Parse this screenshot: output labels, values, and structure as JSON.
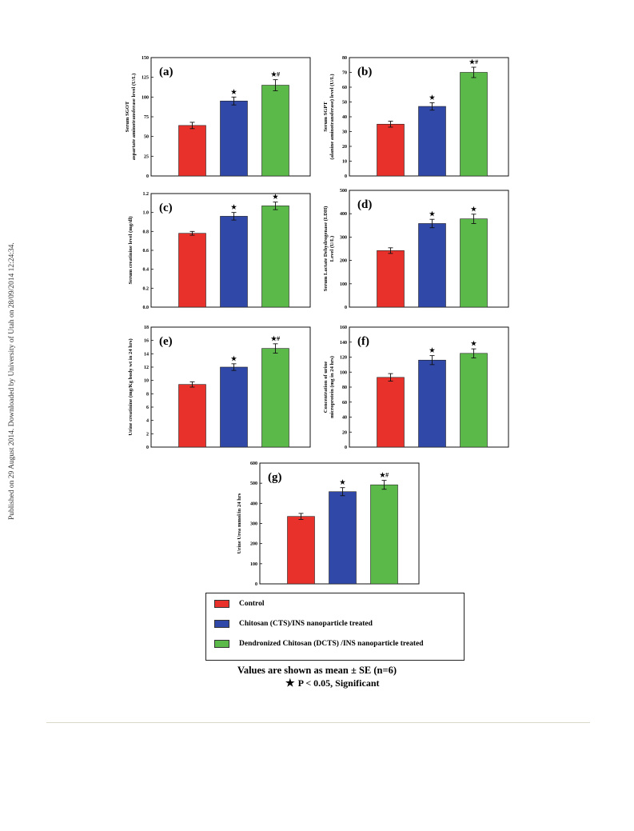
{
  "side_note": "Published on 29 August 2014. Downloaded by University of Utah on 28/09/2014 12:24:34.",
  "colors": {
    "control": "#e8312a",
    "cts": "#3048a8",
    "dcts": "#5ab948"
  },
  "chart_data": [
    {
      "id": "a",
      "type": "bar",
      "panel_label": "(a)",
      "ylabel": [
        "Serum SGOT",
        "aspartate aminotransferase level (U/L)"
      ],
      "yticks": [
        "0",
        "25",
        "50",
        "75",
        "100",
        "125",
        "150"
      ],
      "ylim": [
        0,
        150
      ],
      "values": [
        64,
        95,
        115
      ],
      "errors": [
        4,
        5,
        7
      ],
      "markers": [
        "",
        "★",
        "★#"
      ]
    },
    {
      "id": "b",
      "type": "bar",
      "panel_label": "(b)",
      "ylabel": [
        "Serum SGPT",
        "(alanine aminotransferase) level (U/L)"
      ],
      "yticks": [
        "0",
        "10",
        "20",
        "30",
        "40",
        "50",
        "60",
        "70",
        "80"
      ],
      "ylim": [
        0,
        80
      ],
      "values": [
        35,
        47,
        70
      ],
      "errors": [
        2,
        2.5,
        3.5
      ],
      "markers": [
        "",
        "★",
        "★#"
      ]
    },
    {
      "id": "c",
      "type": "bar",
      "panel_label": "(c)",
      "ylabel": [
        "Serum creatinine level (mg/dl)"
      ],
      "yticks": [
        "0.0",
        "0.2",
        "0.4",
        "0.6",
        "0.8",
        "1.0",
        "1.2"
      ],
      "ylim": [
        0,
        1.2
      ],
      "values": [
        0.78,
        0.96,
        1.07
      ],
      "errors": [
        0.02,
        0.04,
        0.04
      ],
      "markers": [
        "",
        "★",
        "★"
      ]
    },
    {
      "id": "d",
      "type": "bar",
      "panel_label": "(d)",
      "ylabel": [
        "Serum Lactate Dehydrogenase (LDH)",
        "Level (U/L)"
      ],
      "yticks": [
        "0",
        "100",
        "200",
        "300",
        "400",
        "500"
      ],
      "ylim": [
        0,
        500
      ],
      "values": [
        242,
        358,
        378
      ],
      "errors": [
        12,
        18,
        20
      ],
      "markers": [
        "",
        "★",
        "★"
      ]
    },
    {
      "id": "e",
      "type": "bar",
      "panel_label": "(e)",
      "ylabel": [
        "Urine creatinine (mg/Kg body wt in 24 hrs)"
      ],
      "yticks": [
        "0",
        "2",
        "4",
        "6",
        "8",
        "10",
        "12",
        "14",
        "16",
        "18"
      ],
      "ylim": [
        0,
        18
      ],
      "values": [
        9.4,
        12.0,
        14.8
      ],
      "errors": [
        0.4,
        0.5,
        0.7
      ],
      "markers": [
        "",
        "★",
        "★#"
      ]
    },
    {
      "id": "f",
      "type": "bar",
      "panel_label": "(f)",
      "ylabel": [
        "Concentration of urine",
        "microprotein (mg in 24 hrs)"
      ],
      "yticks": [
        "0",
        "20",
        "40",
        "60",
        "80",
        "100",
        "120",
        "140",
        "160"
      ],
      "ylim": [
        0,
        160
      ],
      "values": [
        93,
        116,
        125
      ],
      "errors": [
        5,
        6,
        6
      ],
      "markers": [
        "",
        "★",
        "★"
      ]
    },
    {
      "id": "g",
      "type": "bar",
      "panel_label": "(g)",
      "ylabel": [
        "Urine Urea mmol/in 24 hrs"
      ],
      "yticks": [
        "0",
        "100",
        "200",
        "300",
        "400",
        "500",
        "600"
      ],
      "ylim": [
        0,
        600
      ],
      "values": [
        335,
        458,
        492
      ],
      "errors": [
        15,
        20,
        22
      ],
      "markers": [
        "",
        "★",
        "★#"
      ]
    }
  ],
  "legend": [
    {
      "label": "Control",
      "color": "#e8312a"
    },
    {
      "label": "Chitosan (CTS)/INS nanoparticle treated",
      "color": "#3048a8"
    },
    {
      "label": "Dendronized Chitosan (DCTS) /INS nanoparticle treated",
      "color": "#5ab948"
    }
  ],
  "notes": {
    "line1": "Values are shown as mean ± SE (n=6)",
    "star": "★",
    "line2": "P < 0.05, Significant"
  }
}
